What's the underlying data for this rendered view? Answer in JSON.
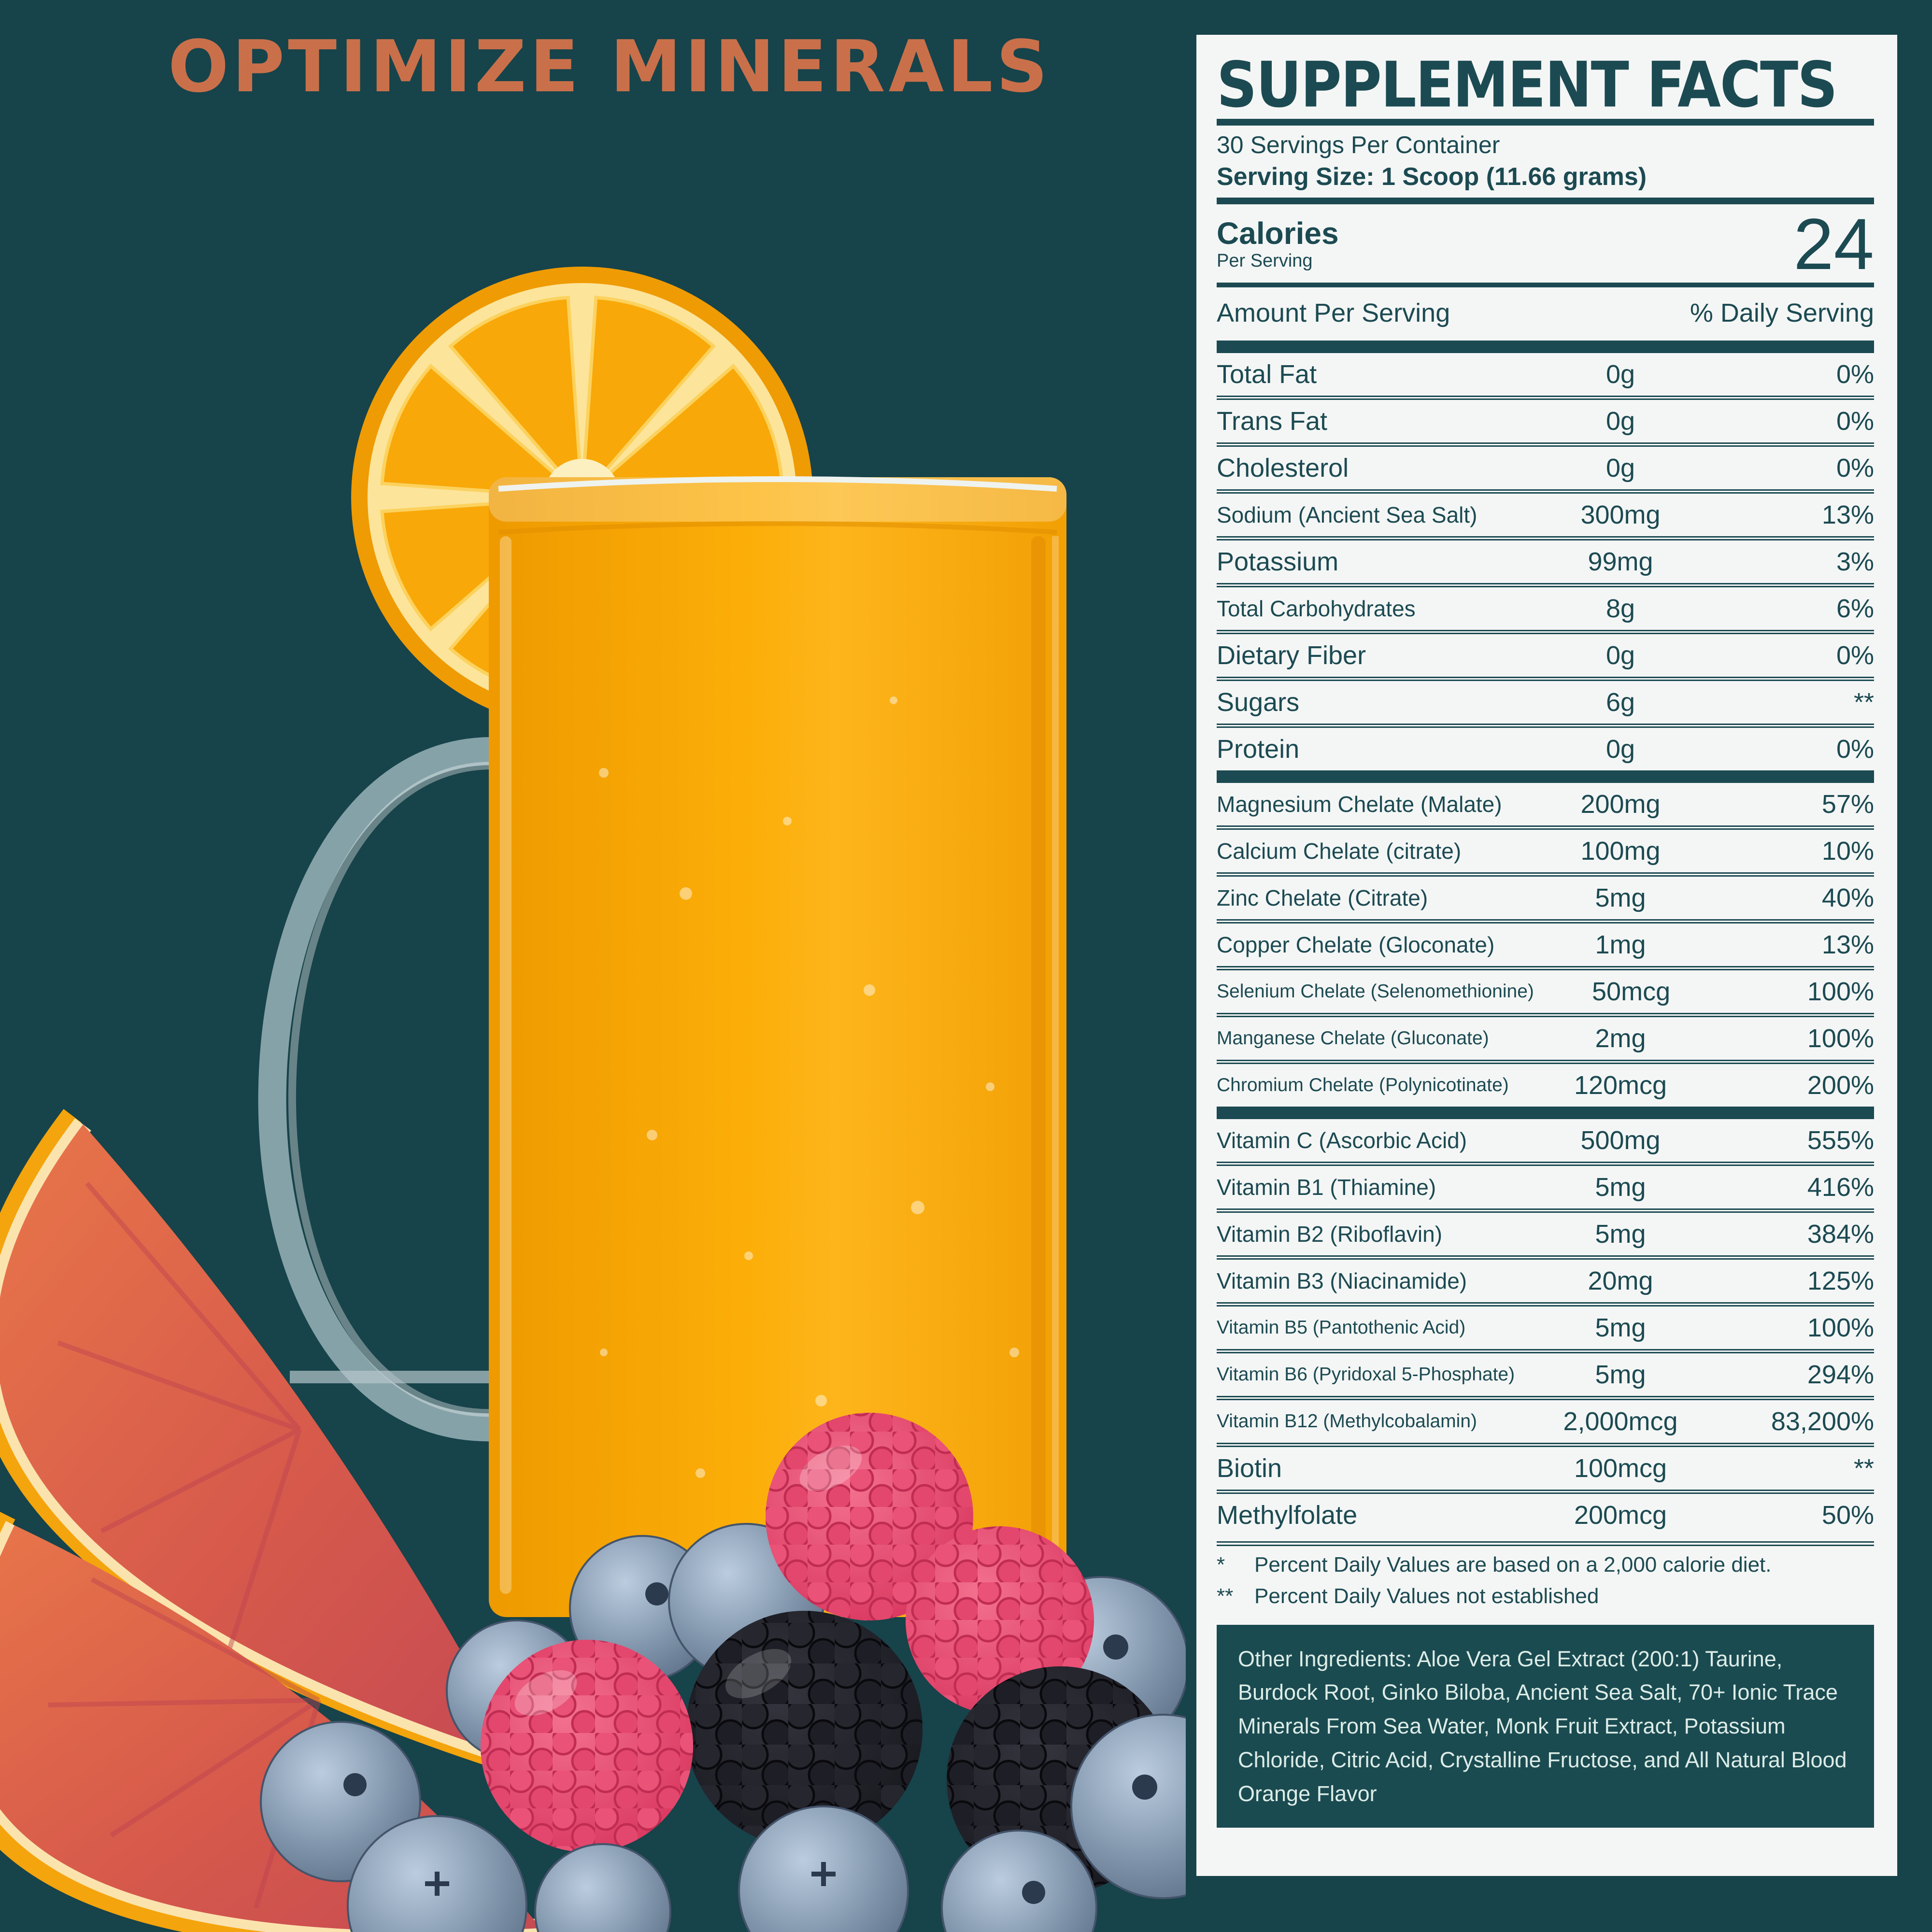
{
  "colors": {
    "bg": "#17434a",
    "accent": "#c9704a",
    "panel-bg": "#f4f6f5",
    "ink": "#1c4a52",
    "box-bg": "#1a4b51",
    "box-text": "#ddece7",
    "juice": "#f9a600"
  },
  "headline": "OPTIMIZE MINERALS",
  "artwork": {
    "items": [
      "orange-slice",
      "orange-juice-glass",
      "glass-handle",
      "blood-orange-wedge",
      "blood-orange-wedge",
      "blueberries",
      "raspberries",
      "blackberries"
    ]
  },
  "panel": {
    "title": "SUPPLEMENT FACTS",
    "servings_per_container": "30 Servings Per Container",
    "serving_size": "Serving Size: 1 Scoop (11.66 grams)",
    "calories_label": "Calories",
    "calories_sub": "Per Serving",
    "calories_value": "24",
    "col_amount": "Amount Per Serving",
    "col_dv": "% Daily Serving",
    "nutrients": [
      {
        "name": "Total Fat",
        "amount": "0g",
        "dv": "0%"
      },
      {
        "name": "Trans Fat",
        "amount": "0g",
        "dv": "0%"
      },
      {
        "name": "Cholesterol",
        "amount": "0g",
        "dv": "0%"
      },
      {
        "name": "Sodium (Ancient Sea Salt)",
        "amount": "300mg",
        "dv": "13%"
      },
      {
        "name": "Potassium",
        "amount": "99mg",
        "dv": "3%"
      },
      {
        "name": "Total Carbohydrates",
        "amount": "8g",
        "dv": "6%"
      },
      {
        "name": "Dietary Fiber",
        "amount": "0g",
        "dv": "0%"
      },
      {
        "name": "Sugars",
        "amount": "6g",
        "dv": "**"
      },
      {
        "name": "Protein",
        "amount": "0g",
        "dv": "0%"
      }
    ],
    "minerals": [
      {
        "name": "Magnesium Chelate (Malate)",
        "amount": "200mg",
        "dv": "57%"
      },
      {
        "name": "Calcium Chelate (citrate)",
        "amount": "100mg",
        "dv": "10%"
      },
      {
        "name": "Zinc Chelate (Citrate)",
        "amount": "5mg",
        "dv": "40%"
      },
      {
        "name": "Copper Chelate (Gloconate)",
        "amount": "1mg",
        "dv": "13%"
      },
      {
        "name": "Selenium Chelate (Selenomethionine)",
        "amount": "50mcg",
        "dv": "100%"
      },
      {
        "name": "Manganese Chelate (Gluconate)",
        "amount": "2mg",
        "dv": "100%"
      },
      {
        "name": "Chromium Chelate (Polynicotinate)",
        "amount": "120mcg",
        "dv": "200%"
      }
    ],
    "vitamins": [
      {
        "name": "Vitamin C (Ascorbic Acid)",
        "amount": "500mg",
        "dv": "555%"
      },
      {
        "name": "Vitamin B1 (Thiamine)",
        "amount": "5mg",
        "dv": "416%"
      },
      {
        "name": "Vitamin B2 (Riboflavin)",
        "amount": "5mg",
        "dv": "384%"
      },
      {
        "name": "Vitamin B3 (Niacinamide)",
        "amount": "20mg",
        "dv": "125%"
      },
      {
        "name": "Vitamin B5 (Pantothenic Acid)",
        "amount": "5mg",
        "dv": "100%"
      },
      {
        "name": "Vitamin B6 (Pyridoxal 5-Phosphate)",
        "amount": "5mg",
        "dv": "294%"
      },
      {
        "name": "Vitamin B12 (Methylcobalamin)",
        "amount": "2,000mcg",
        "dv": "83,200%"
      },
      {
        "name": "Biotin",
        "amount": "100mcg",
        "dv": "**"
      },
      {
        "name": "Methylfolate",
        "amount": "200mcg",
        "dv": "50%"
      }
    ],
    "footnotes": [
      {
        "mark": "*",
        "text": "Percent Daily Values are based on a 2,000 calorie diet."
      },
      {
        "mark": "**",
        "text": "Percent Daily Values not established"
      }
    ],
    "other_ingredients": "Other Ingredients: Aloe Vera Gel Extract (200:1) Taurine, Burdock Root, Ginko Biloba, Ancient Sea Salt, 70+ Ionic Trace Minerals From Sea Water, Monk Fruit Extract, Potassium Chloride, Citric Acid, Crystalline Fructose, and All Natural Blood Orange Flavor"
  }
}
